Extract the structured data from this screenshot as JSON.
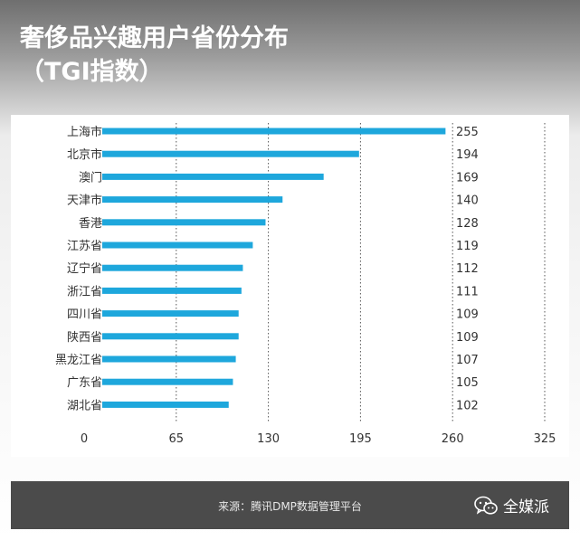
{
  "title": {
    "line1": "奢侈品兴趣用户省份分布",
    "line2": "（TGI指数）"
  },
  "chart_data": {
    "type": "bar",
    "orientation": "horizontal",
    "categories": [
      "上海市",
      "北京市",
      "澳门",
      "天津市",
      "香港",
      "江苏省",
      "辽宁省",
      "浙江省",
      "四川省",
      "陕西省",
      "黑龙江省",
      "广东省",
      "湖北省"
    ],
    "values": [
      255,
      194,
      169,
      140,
      128,
      119,
      112,
      111,
      109,
      109,
      107,
      105,
      102
    ],
    "value_labels": [
      "255",
      "194",
      "169",
      "140",
      "128",
      "119",
      "112",
      "111",
      "109",
      "109",
      "107",
      "105",
      "102"
    ],
    "x_ticks": [
      0,
      65,
      130,
      195,
      260,
      325
    ],
    "xlim": [
      0,
      325
    ],
    "grid": "vertical dotted",
    "bar_color": "#1ea7dc"
  },
  "footer": {
    "source": "来源：腾讯DMP数据管理平台",
    "brand": "全媒派",
    "brand_icon": "wechat-icon"
  }
}
